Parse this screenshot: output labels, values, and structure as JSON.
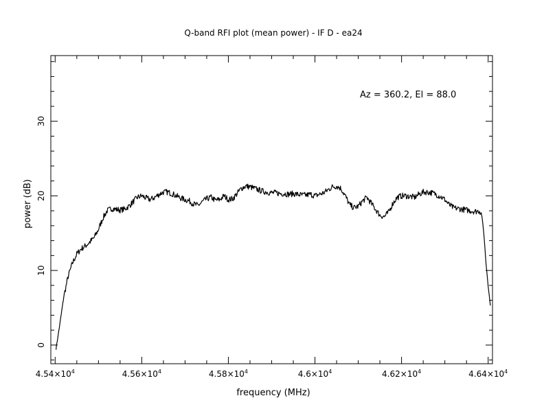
{
  "chart_data": {
    "type": "line",
    "title": "Q-band RFI plot (mean power) - IF D - ea24",
    "xlabel": "frequency (MHz)",
    "ylabel": "power (dB)",
    "annotation": "Az = 360.2, El = 88.0",
    "xlim": [
      45390,
      46410
    ],
    "ylim": [
      -2.5,
      38.8
    ],
    "x_ticks": [
      {
        "value": 45400,
        "mantissa": "4.54",
        "exp": "4"
      },
      {
        "value": 45600,
        "mantissa": "4.56",
        "exp": "4"
      },
      {
        "value": 45800,
        "mantissa": "4.58",
        "exp": "4"
      },
      {
        "value": 46000,
        "mantissa": "4.6",
        "exp": "4"
      },
      {
        "value": 46200,
        "mantissa": "4.62",
        "exp": "4"
      },
      {
        "value": 46400,
        "mantissa": "4.64",
        "exp": "4"
      }
    ],
    "y_ticks": [
      {
        "value": 0,
        "label": "0"
      },
      {
        "value": 10,
        "label": "10"
      },
      {
        "value": 20,
        "label": "20"
      },
      {
        "value": 30,
        "label": "30"
      }
    ],
    "grid": false,
    "series": [
      {
        "color": "#000000",
        "x": [
          45402,
          45410,
          45420,
          45430,
          45440,
          45450,
          45460,
          45470,
          45480,
          45490,
          45500,
          45510,
          45520,
          45530,
          45540,
          45550,
          45560,
          45570,
          45580,
          45590,
          45600,
          45610,
          45620,
          45630,
          45640,
          45650,
          45660,
          45670,
          45680,
          45690,
          45700,
          45710,
          45720,
          45730,
          45740,
          45750,
          45760,
          45770,
          45780,
          45790,
          45800,
          45810,
          45820,
          45830,
          45840,
          45850,
          45860,
          45870,
          45880,
          45890,
          45900,
          45910,
          45920,
          45930,
          45940,
          45950,
          45960,
          45970,
          45980,
          45990,
          46000,
          46010,
          46020,
          46030,
          46040,
          46050,
          46060,
          46070,
          46080,
          46090,
          46100,
          46110,
          46120,
          46130,
          46140,
          46150,
          46160,
          46170,
          46180,
          46190,
          46200,
          46210,
          46220,
          46230,
          46240,
          46250,
          46260,
          46270,
          46280,
          46290,
          46300,
          46310,
          46320,
          46330,
          46340,
          46350,
          46360,
          46370,
          46380,
          46385,
          46390,
          46395,
          46400,
          46405
        ],
        "y": [
          -0.5,
          2.5,
          6.5,
          9.2,
          11.0,
          12.2,
          12.9,
          13.3,
          13.8,
          14.4,
          15.5,
          17.0,
          18.0,
          18.3,
          18.2,
          18.1,
          18.2,
          18.6,
          19.2,
          19.8,
          20.0,
          19.7,
          19.5,
          19.8,
          20.2,
          20.5,
          20.5,
          20.3,
          20.0,
          19.7,
          19.5,
          19.3,
          18.9,
          18.7,
          19.2,
          19.6,
          19.8,
          19.4,
          19.5,
          20.0,
          19.5,
          19.6,
          20.3,
          21.0,
          21.3,
          21.2,
          21.0,
          20.8,
          20.6,
          20.5,
          20.4,
          20.4,
          20.3,
          20.3,
          20.2,
          20.3,
          20.2,
          20.1,
          20.1,
          20.2,
          20.0,
          20.2,
          20.4,
          20.8,
          21.2,
          21.3,
          21.0,
          20.0,
          18.8,
          18.4,
          18.6,
          19.3,
          19.8,
          19.0,
          18.2,
          17.4,
          17.2,
          17.8,
          19.0,
          19.8,
          20.0,
          20.0,
          19.9,
          19.8,
          20.2,
          20.5,
          20.5,
          20.4,
          20.2,
          19.9,
          19.5,
          18.8,
          18.4,
          18.3,
          18.2,
          18.1,
          18.0,
          17.9,
          18.0,
          17.5,
          15.0,
          11.0,
          8.0,
          5.3
        ]
      }
    ]
  }
}
